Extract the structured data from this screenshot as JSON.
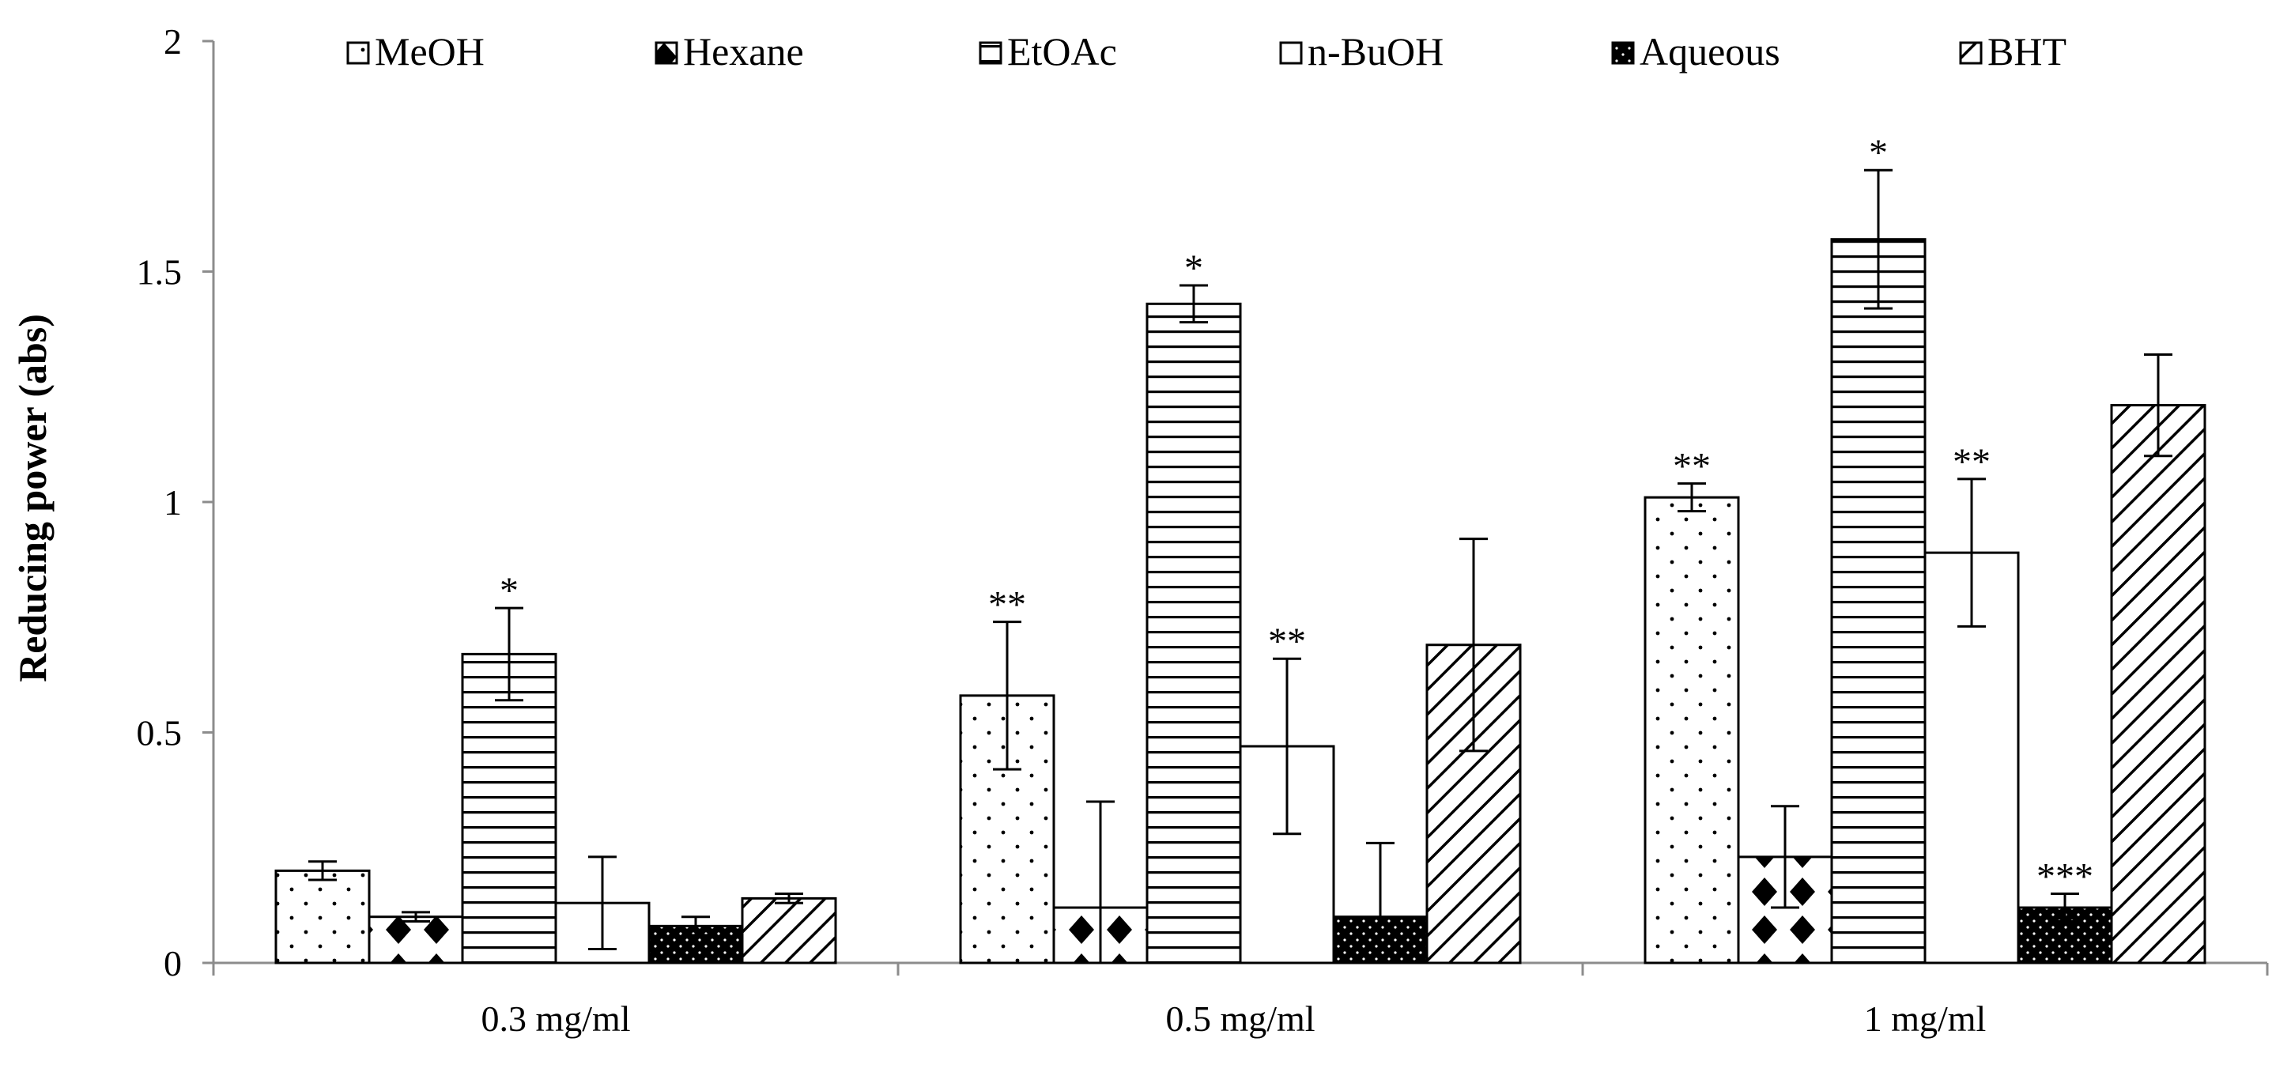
{
  "chart_data": {
    "type": "bar",
    "title": "",
    "xlabel": "",
    "ylabel": "Reducing power (abs)",
    "ylim": [
      0,
      2
    ],
    "yticks": [
      "0",
      "0.5",
      "1",
      "1.5",
      "2"
    ],
    "ytick_values": [
      0,
      0.5,
      1,
      1.5,
      2
    ],
    "categories": [
      "0.3 mg/ml",
      "0.5 mg/ml",
      "1 mg/ml"
    ],
    "legend_position": "top",
    "grid": false,
    "series": [
      {
        "name": "MeOH",
        "pattern": "dots",
        "values": [
          0.2,
          0.58,
          1.01
        ],
        "errors": [
          0.02,
          0.16,
          0.03
        ],
        "annotations": [
          "",
          "**",
          "**"
        ]
      },
      {
        "name": "Hexane",
        "pattern": "diamonds",
        "values": [
          0.1,
          0.12,
          0.23
        ],
        "errors": [
          0.01,
          0.23,
          0.11
        ],
        "annotations": [
          "",
          "",
          ""
        ]
      },
      {
        "name": "EtOAc",
        "pattern": "hlines",
        "values": [
          0.67,
          1.43,
          1.57
        ],
        "errors": [
          0.1,
          0.04,
          0.15
        ],
        "annotations": [
          "*",
          "*",
          "*"
        ]
      },
      {
        "name": "n-BuOH",
        "pattern": "none",
        "values": [
          0.13,
          0.47,
          0.89
        ],
        "errors": [
          0.1,
          0.19,
          0.16
        ],
        "annotations": [
          "",
          "**",
          "**"
        ]
      },
      {
        "name": "Aqueous",
        "pattern": "dark",
        "values": [
          0.08,
          0.1,
          0.12
        ],
        "errors": [
          0.02,
          0.16,
          0.03
        ],
        "annotations": [
          "",
          "",
          "***"
        ]
      },
      {
        "name": "BHT",
        "pattern": "diag",
        "values": [
          0.14,
          0.69,
          1.21
        ],
        "errors": [
          0.01,
          0.23,
          0.11
        ],
        "annotations": [
          "",
          "",
          ""
        ]
      }
    ]
  }
}
